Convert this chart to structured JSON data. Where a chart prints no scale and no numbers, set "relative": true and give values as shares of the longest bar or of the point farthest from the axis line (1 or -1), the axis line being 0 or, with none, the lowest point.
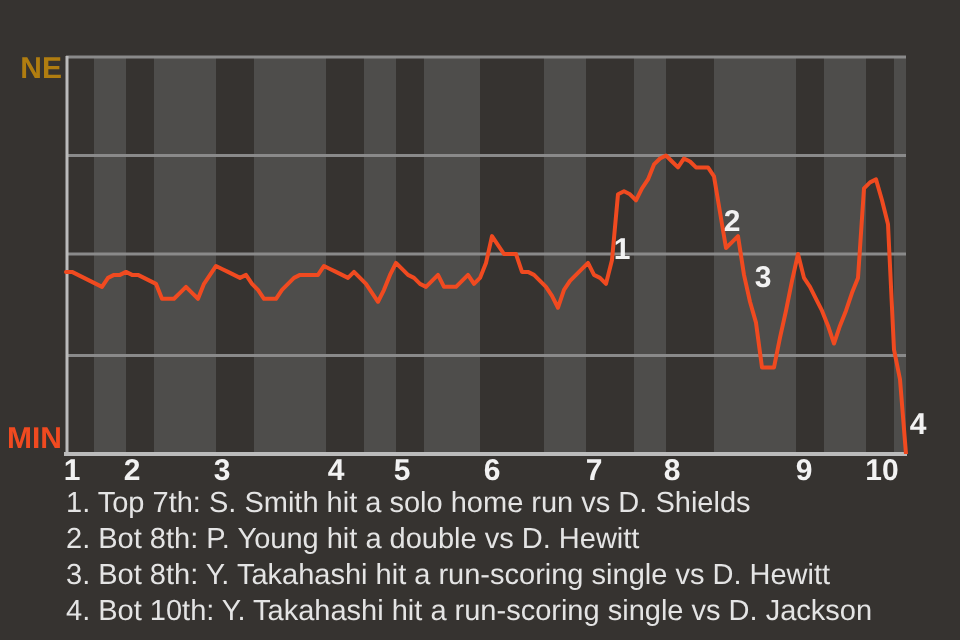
{
  "chart_data": {
    "type": "line",
    "relative": true,
    "categories": [
      null,
      "1",
      null,
      null,
      null,
      null,
      null,
      null,
      null,
      null,
      null,
      "2",
      null,
      null,
      null,
      null,
      null,
      null,
      null,
      null,
      null,
      null,
      null,
      null,
      null,
      null,
      "3",
      null,
      null,
      null,
      null,
      null,
      null,
      null,
      null,
      null,
      null,
      null,
      null,
      null,
      null,
      null,
      null,
      null,
      null,
      "4",
      null,
      null,
      null,
      null,
      null,
      null,
      null,
      null,
      null,
      null,
      "5",
      null,
      null,
      null,
      null,
      null,
      null,
      null,
      null,
      null,
      null,
      null,
      null,
      null,
      null,
      "6",
      null,
      null,
      null,
      null,
      null,
      null,
      null,
      null,
      null,
      null,
      null,
      null,
      null,
      null,
      null,
      null,
      "7",
      null,
      null,
      null,
      null,
      null,
      null,
      null,
      null,
      null,
      null,
      null,
      null,
      "8",
      null,
      null,
      null,
      null,
      null,
      null,
      null,
      null,
      null,
      null,
      null,
      null,
      null,
      null,
      null,
      null,
      null,
      null,
      null,
      null,
      null,
      "9",
      null,
      null,
      null,
      null,
      null,
      null,
      null,
      null,
      null,
      null,
      null,
      null,
      "10",
      null,
      null,
      null,
      null
    ],
    "series": [
      {
        "color": "#f04a20",
        "values": [
          0.61,
          0.61,
          0.6,
          0.59,
          0.58,
          0.57,
          0.56,
          0.59,
          0.6,
          0.6,
          0.61,
          0.6,
          0.6,
          0.59,
          0.58,
          0.57,
          0.52,
          0.52,
          0.52,
          0.54,
          0.56,
          0.54,
          0.52,
          0.57,
          0.6,
          0.63,
          0.62,
          0.61,
          0.6,
          0.59,
          0.6,
          0.57,
          0.55,
          0.52,
          0.52,
          0.52,
          0.55,
          0.57,
          0.59,
          0.6,
          0.6,
          0.6,
          0.6,
          0.63,
          0.62,
          0.61,
          0.6,
          0.59,
          0.61,
          0.59,
          0.57,
          0.54,
          0.51,
          0.55,
          0.6,
          0.64,
          0.62,
          0.6,
          0.59,
          0.57,
          0.56,
          0.58,
          0.6,
          0.56,
          0.56,
          0.56,
          0.58,
          0.6,
          0.57,
          0.59,
          0.64,
          0.73,
          0.7,
          0.67,
          0.67,
          0.67,
          0.61,
          0.61,
          0.6,
          0.58,
          0.56,
          0.53,
          0.49,
          0.55,
          0.58,
          0.6,
          0.62,
          0.64,
          0.6,
          0.59,
          0.57,
          0.65,
          0.87,
          0.88,
          0.87,
          0.85,
          0.89,
          0.92,
          0.97,
          0.99,
          1,
          0.98,
          0.96,
          0.99,
          0.98,
          0.96,
          0.96,
          0.96,
          0.93,
          0.81,
          0.69,
          0.71,
          0.73,
          0.6,
          0.51,
          0.44,
          0.29,
          0.29,
          0.29,
          0.39,
          0.48,
          0.58,
          0.67,
          0.59,
          0.56,
          0.52,
          0.48,
          0.43,
          0.37,
          0.43,
          0.48,
          0.54,
          0.59,
          0.89,
          0.91,
          0.92,
          0.85,
          0.77,
          0.35,
          0.25,
          0
        ]
      }
    ],
    "ref_lines": [
      {
        "axis": "y",
        "value": 0.33,
        "color": "#8a8a8a"
      },
      {
        "axis": "y",
        "value": 0.67,
        "color": "#8a8a8a"
      },
      {
        "axis": "y",
        "value": 1,
        "color": "#8a8a8a"
      }
    ],
    "legend": false,
    "marker": "none",
    "line_style": "solid",
    "annotations": [
      "NE",
      "MIN",
      "1",
      "2",
      "3",
      "4",
      "1. Top 7th: S. Smith hit a solo home run vs D. Shields",
      "2. Bot 8th: P. Young hit a double vs D. Hewitt",
      "3. Bot 8th: Y. Takahashi hit a run-scoring single vs D. Hewitt",
      "4. Bot 10th: Y. Takahashi hit a run-scoring single vs D. Jackson"
    ]
  }
}
